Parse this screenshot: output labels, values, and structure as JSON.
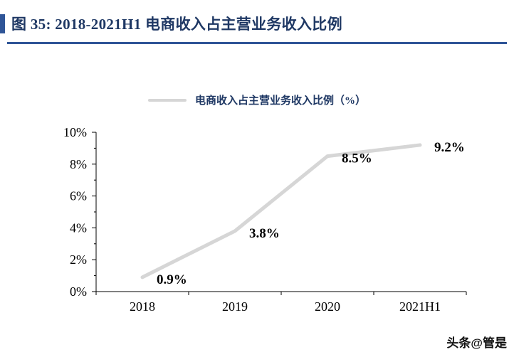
{
  "header": {
    "title": "图 35:  2018-2021H1 电商收入占主营业务收入比例"
  },
  "theme": {
    "accent": "#2F5597",
    "title_color": "#1F3864",
    "line_color": "#D6D6D6"
  },
  "chart_data": {
    "type": "line",
    "title": "2018-2021H1 电商收入占主营业务收入比例",
    "legend": "电商收入占主营业务收入比例（%）",
    "legend_position": "top",
    "categories": [
      "2018",
      "2019",
      "2020",
      "2021H1"
    ],
    "values": [
      0.9,
      3.8,
      8.5,
      9.2
    ],
    "point_labels": [
      "0.9%",
      "3.8%",
      "8.5%",
      "9.2%"
    ],
    "xlabel": "",
    "ylabel": "",
    "ylim": [
      0,
      10
    ],
    "ytick_step": 2,
    "ytick_labels": [
      "0%",
      "2%",
      "4%",
      "6%",
      "8%",
      "10%"
    ],
    "grid": false,
    "line_color": "#D6D6D6"
  },
  "watermark": "头条@管是"
}
